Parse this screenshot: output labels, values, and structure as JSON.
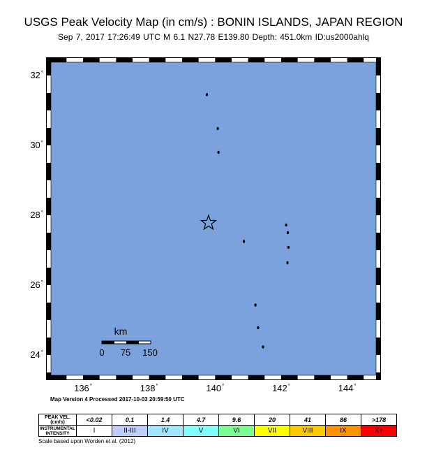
{
  "header": {
    "title": "USGS Peak Velocity Map (in cm/s) : BONIN ISLANDS, JAPAN REGION",
    "subtitle": "Sep  7, 2017 17:26:49 UTC   M 6.1   N27.78 E139.80   Depth: 451.0km   ID:us2000ahlq"
  },
  "map": {
    "region": {
      "lon_min": 134.9,
      "lon_max": 145.0,
      "lat_min": 23.3,
      "lat_max": 32.5
    },
    "latitude_ticks": [
      {
        "value": 32,
        "label": "32"
      },
      {
        "value": 30,
        "label": "30"
      },
      {
        "value": 28,
        "label": "28"
      },
      {
        "value": 26,
        "label": "26"
      },
      {
        "value": 24,
        "label": "24"
      }
    ],
    "longitude_ticks": [
      {
        "value": 136,
        "label": "136"
      },
      {
        "value": 138,
        "label": "138"
      },
      {
        "value": 140,
        "label": "140"
      },
      {
        "value": 142,
        "label": "142"
      },
      {
        "value": 144,
        "label": "144"
      }
    ],
    "epicenter": {
      "lon": 139.8,
      "lat": 27.78
    },
    "ocean_color": "#7ba2dc",
    "scale_bar": {
      "unit_label": "km",
      "labels": [
        "0",
        "75",
        "150"
      ]
    },
    "islands": [
      {
        "lon": 139.75,
        "lat": 31.45
      },
      {
        "lon": 140.08,
        "lat": 30.48
      },
      {
        "lon": 140.1,
        "lat": 29.8
      },
      {
        "lon": 142.15,
        "lat": 27.72
      },
      {
        "lon": 142.2,
        "lat": 27.5
      },
      {
        "lon": 142.22,
        "lat": 27.08
      },
      {
        "lon": 142.19,
        "lat": 26.64
      },
      {
        "lon": 140.87,
        "lat": 27.25
      },
      {
        "lon": 141.22,
        "lat": 25.43
      },
      {
        "lon": 141.3,
        "lat": 24.78
      },
      {
        "lon": 141.45,
        "lat": 24.23
      }
    ]
  },
  "version_text": "Map Version 4 Processed 2017-10-03 20:59:50 UTC",
  "legend": {
    "pv_header": "PEAK VEL.(cm/s)",
    "mmi_header_line1": "INSTRUMENTAL",
    "mmi_header_line2": "INTENSITY",
    "columns": [
      {
        "pv": "<0.02",
        "mmi": "I",
        "color": "#ffffff"
      },
      {
        "pv": "0.1",
        "mmi": "II-III",
        "color": "#bfccff"
      },
      {
        "pv": "1.4",
        "mmi": "IV",
        "color": "#a0e6ff"
      },
      {
        "pv": "4.7",
        "mmi": "V",
        "color": "#80ffff"
      },
      {
        "pv": "9.6",
        "mmi": "VI",
        "color": "#7aff93"
      },
      {
        "pv": "20",
        "mmi": "VII",
        "color": "#ffff00"
      },
      {
        "pv": "41",
        "mmi": "VIII",
        "color": "#ffc800"
      },
      {
        "pv": "86",
        "mmi": "IX",
        "color": "#ff9100"
      },
      {
        "pv": ">178",
        "mmi": "X+",
        "color": "#ff0000"
      }
    ]
  },
  "footnote": "Scale based upon Worden et al. (2012)"
}
